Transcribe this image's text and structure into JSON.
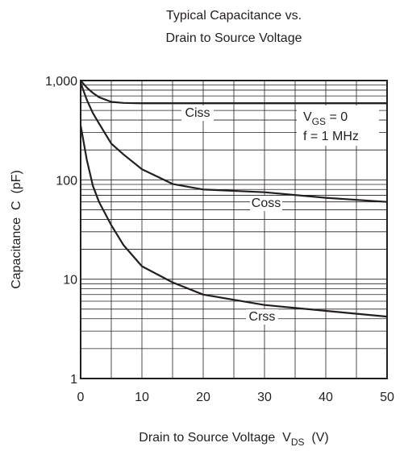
{
  "chart_data": {
    "type": "line",
    "title": [
      "Typical Capacitance vs.",
      "Drain to Source Voltage"
    ],
    "xlabel": "Drain to Source Voltage  V",
    "xlabel_sub": "DS",
    "xlabel_end": "  (V)",
    "ylabel": "Capacitance  C  (pF)",
    "annotation_lines": [
      {
        "text": "V",
        "sub": "GS",
        "end": " = 0"
      },
      {
        "text": "f = 1 MHz"
      }
    ],
    "x": [
      0,
      1,
      2,
      3,
      5,
      7,
      10,
      15,
      20,
      30,
      40,
      50
    ],
    "series": [
      {
        "name": "Ciss",
        "color": "#231f20",
        "values": [
          1000,
          850,
          750,
          680,
          610,
          595,
          590,
          590,
          590,
          590,
          590,
          590
        ]
      },
      {
        "name": "Coss",
        "color": "#231f20",
        "values": [
          950,
          640,
          470,
          370,
          232,
          180,
          128,
          91,
          80,
          75,
          66,
          60
        ]
      },
      {
        "name": "Crss",
        "color": "#231f20",
        "values": [
          355,
          160,
          87,
          60,
          35,
          22,
          13.5,
          9.3,
          7,
          5.5,
          4.8,
          4.2
        ]
      }
    ],
    "xlim": [
      0,
      50
    ],
    "xticks": [
      0,
      10,
      20,
      30,
      40,
      50
    ],
    "x_minor_ticks": [
      5,
      15,
      25,
      35,
      45
    ],
    "ylim": [
      1,
      1000
    ],
    "log_y": true,
    "yticks": [
      1,
      10,
      100,
      {
        "value": 1000,
        "label": "1,000"
      }
    ],
    "y_minor_ticks": [
      2,
      3,
      4,
      5,
      6,
      7,
      8,
      9,
      20,
      30,
      40,
      50,
      60,
      70,
      80,
      90,
      200,
      300,
      400,
      500,
      600,
      700,
      800,
      900
    ],
    "grid": true
  }
}
